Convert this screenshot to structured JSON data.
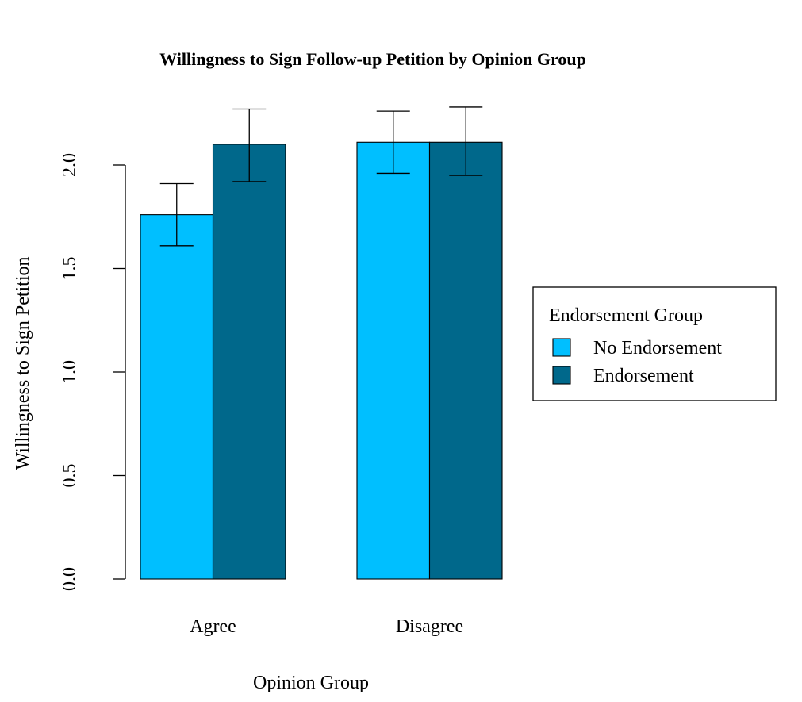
{
  "chart_data": {
    "type": "bar",
    "title": "Willingness to Sign Follow-up Petition by Opinion Group",
    "xlabel": "Opinion Group",
    "ylabel": "Willingness to Sign Petition",
    "categories": [
      "Agree",
      "Disagree"
    ],
    "ylim": [
      0,
      2.3
    ],
    "yticks": [
      0.0,
      0.5,
      1.0,
      1.5,
      2.0
    ],
    "ytick_labels": [
      "0.0",
      "0.5",
      "1.0",
      "1.5",
      "2.0"
    ],
    "grid": false,
    "legend": {
      "title": "Endorsement Group",
      "position": "right"
    },
    "series": [
      {
        "name": "No Endorsement",
        "color": "#00BFFF",
        "values": [
          1.76,
          2.11
        ],
        "error_low": [
          1.61,
          1.96
        ],
        "error_high": [
          1.91,
          2.26
        ]
      },
      {
        "name": "Endorsement",
        "color": "#00688B",
        "values": [
          2.1,
          2.11
        ],
        "error_low": [
          1.92,
          1.95
        ],
        "error_high": [
          2.27,
          2.28
        ]
      }
    ]
  }
}
